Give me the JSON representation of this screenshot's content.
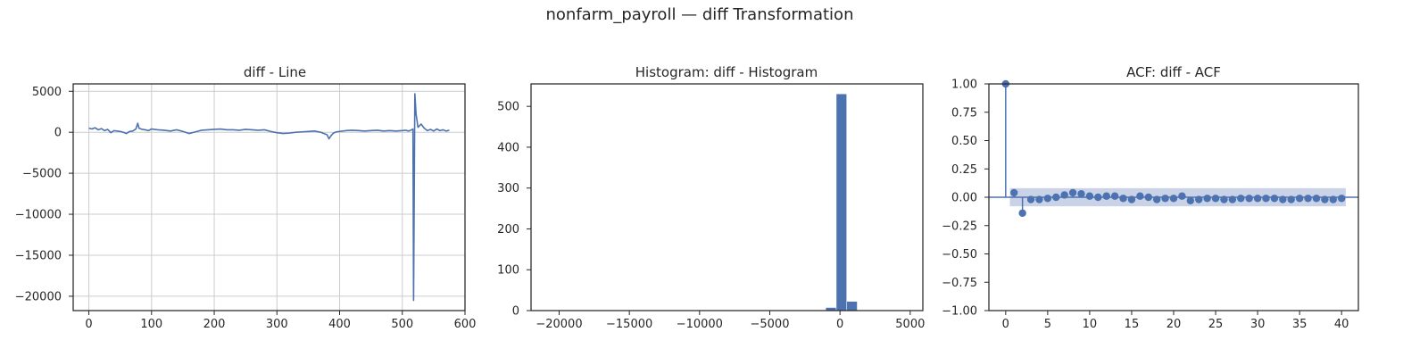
{
  "figure": {
    "suptitle": "nonfarm_payroll — diff Transformation"
  },
  "colors": {
    "series": "#4c72b0",
    "grid": "#cccccc",
    "axes": "#262626",
    "confidence_band": "#c4cde6"
  },
  "chart_data": [
    {
      "type": "line",
      "title": "diff - Line",
      "xlabel": "",
      "ylabel": "",
      "xlim": [
        -25,
        600
      ],
      "ylim": [
        -21750,
        5900
      ],
      "xticks": [
        0,
        100,
        200,
        300,
        400,
        500,
        600
      ],
      "xtick_labels": [
        "0",
        "100",
        "200",
        "300",
        "400",
        "500",
        "600"
      ],
      "yticks": [
        5000,
        0,
        -5000,
        -10000,
        -15000,
        -20000
      ],
      "ytick_labels": [
        "5000",
        "0",
        "−5000",
        "−10000",
        "−15000",
        "−20000"
      ],
      "grid": true,
      "series": [
        {
          "x": [
            0,
            5,
            10,
            15,
            20,
            25,
            30,
            35,
            40,
            45,
            50,
            55,
            60,
            65,
            70,
            75,
            78,
            80,
            85,
            90,
            95,
            100,
            110,
            120,
            130,
            140,
            150,
            160,
            170,
            180,
            190,
            200,
            210,
            220,
            230,
            240,
            250,
            260,
            270,
            280,
            290,
            300,
            310,
            320,
            330,
            340,
            350,
            360,
            370,
            375,
            380,
            383,
            386,
            390,
            395,
            400,
            410,
            420,
            430,
            440,
            450,
            460,
            470,
            480,
            490,
            500,
            505,
            510,
            515,
            517,
            518,
            520,
            522,
            525,
            530,
            535,
            540,
            545,
            550,
            555,
            560,
            565,
            570,
            575
          ],
          "y": [
            500,
            400,
            550,
            300,
            450,
            200,
            350,
            -50,
            200,
            150,
            100,
            0,
            -150,
            100,
            150,
            400,
            1100,
            500,
            350,
            300,
            200,
            400,
            300,
            250,
            150,
            300,
            100,
            -150,
            50,
            250,
            300,
            350,
            400,
            300,
            300,
            250,
            350,
            300,
            250,
            300,
            100,
            -50,
            -150,
            -100,
            0,
            50,
            100,
            150,
            0,
            -150,
            -300,
            -800,
            -450,
            -100,
            50,
            100,
            200,
            250,
            200,
            150,
            200,
            250,
            150,
            200,
            150,
            200,
            250,
            150,
            300,
            400,
            -20500,
            4700,
            2200,
            600,
            1000,
            500,
            200,
            350,
            150,
            400,
            200,
            300,
            150,
            250
          ]
        }
      ]
    },
    {
      "type": "bar",
      "title": "Histogram: diff - Histogram",
      "xlabel": "",
      "ylabel": "",
      "xlim": [
        -22000,
        5900
      ],
      "ylim": [
        0,
        555
      ],
      "xticks": [
        -20000,
        -15000,
        -10000,
        -5000,
        0,
        5000
      ],
      "xtick_labels": [
        "−20000",
        "−15000",
        "−10000",
        "−5000",
        "0",
        "5000"
      ],
      "yticks": [
        0,
        100,
        200,
        300,
        400,
        500
      ],
      "ytick_labels": [
        "0",
        "100",
        "200",
        "300",
        "400",
        "500"
      ],
      "grid": false,
      "bin_edges": [
        -21250,
        -20500,
        -19750,
        -19000,
        -18250,
        -17500,
        -16750,
        -16000,
        -15250,
        -14500,
        -13750,
        -13000,
        -12250,
        -11500,
        -10750,
        -10000,
        -9250,
        -8500,
        -7750,
        -7000,
        -6250,
        -5500,
        -4750,
        -4000,
        -3250,
        -2500,
        -1750,
        -1000,
        -250,
        500,
        1250,
        2000,
        2750,
        3500,
        4250,
        5000
      ],
      "values": [
        1,
        0,
        0,
        0,
        0,
        0,
        0,
        0,
        0,
        0,
        0,
        0,
        0,
        0,
        0,
        0,
        0,
        0,
        0,
        0,
        0,
        0,
        0,
        0,
        0,
        0,
        0,
        7,
        530,
        22,
        1,
        1,
        0,
        0,
        1
      ]
    },
    {
      "type": "scatter",
      "subtype": "stem",
      "title": "ACF: diff - ACF",
      "xlabel": "",
      "ylabel": "",
      "xlim": [
        -2,
        42
      ],
      "ylim": [
        -1.0,
        1.0
      ],
      "xticks": [
        0,
        5,
        10,
        15,
        20,
        25,
        30,
        35,
        40
      ],
      "xtick_labels": [
        "0",
        "5",
        "10",
        "15",
        "20",
        "25",
        "30",
        "35",
        "40"
      ],
      "yticks": [
        1.0,
        0.75,
        0.5,
        0.25,
        0.0,
        -0.25,
        -0.5,
        -0.75,
        -1.0
      ],
      "ytick_labels": [
        "1.00",
        "0.75",
        "0.50",
        "0.25",
        "0.00",
        "−0.25",
        "−0.50",
        "−0.75",
        "−1.00"
      ],
      "grid": false,
      "confidence_band": [
        -0.08,
        0.08
      ],
      "x": [
        0,
        1,
        2,
        3,
        4,
        5,
        6,
        7,
        8,
        9,
        10,
        11,
        12,
        13,
        14,
        15,
        16,
        17,
        18,
        19,
        20,
        21,
        22,
        23,
        24,
        25,
        26,
        27,
        28,
        29,
        30,
        31,
        32,
        33,
        34,
        35,
        36,
        37,
        38,
        39,
        40
      ],
      "values": [
        1.0,
        0.04,
        -0.14,
        -0.02,
        -0.02,
        -0.01,
        0.0,
        0.02,
        0.04,
        0.03,
        0.01,
        0.0,
        0.01,
        0.01,
        -0.01,
        -0.02,
        0.01,
        0.0,
        -0.02,
        -0.01,
        -0.01,
        0.01,
        -0.03,
        -0.02,
        -0.01,
        -0.01,
        -0.02,
        -0.02,
        -0.01,
        -0.01,
        -0.01,
        -0.01,
        -0.01,
        -0.02,
        -0.02,
        -0.01,
        -0.01,
        -0.01,
        -0.02,
        -0.02,
        -0.01
      ]
    }
  ]
}
